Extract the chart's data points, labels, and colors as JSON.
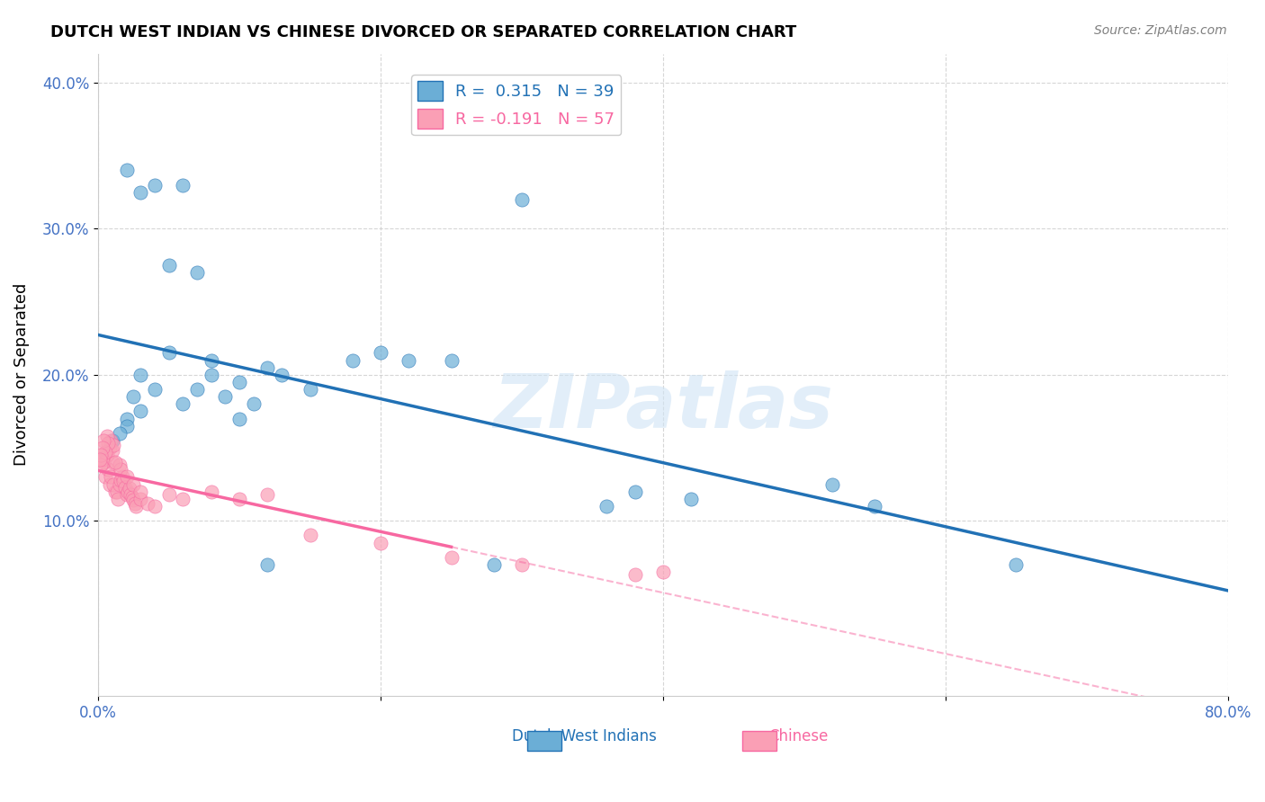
{
  "title": "DUTCH WEST INDIAN VS CHINESE DIVORCED OR SEPARATED CORRELATION CHART",
  "source": "Source: ZipAtlas.com",
  "xlabel": "",
  "ylabel": "Divorced or Separated",
  "xlim": [
    0.0,
    0.8
  ],
  "ylim": [
    -0.02,
    0.42
  ],
  "x_ticks": [
    0.0,
    0.2,
    0.4,
    0.6,
    0.8
  ],
  "x_tick_labels": [
    "0.0%",
    "",
    "",
    "",
    "80.0%"
  ],
  "y_ticks": [
    0.1,
    0.2,
    0.3,
    0.4
  ],
  "y_tick_labels": [
    "10.0%",
    "20.0%",
    "30.0%",
    "40.0%"
  ],
  "legend_label1": "Dutch West Indians",
  "legend_label2": "Chinese",
  "R1": "0.315",
  "N1": "39",
  "R2": "-0.191",
  "N2": "57",
  "blue_color": "#6baed6",
  "pink_color": "#fa9fb5",
  "blue_line_color": "#2171b5",
  "pink_line_color": "#f768a1",
  "watermark": "ZIPatlas",
  "dutch_x": [
    0.02,
    0.04,
    0.06,
    0.03,
    0.05,
    0.01,
    0.02,
    0.03,
    0.025,
    0.015,
    0.08,
    0.1,
    0.09,
    0.07,
    0.12,
    0.15,
    0.11,
    0.13,
    0.2,
    0.22,
    0.25,
    0.18,
    0.38,
    0.42,
    0.36,
    0.52,
    0.55,
    0.65,
    0.02,
    0.03,
    0.04,
    0.05,
    0.06,
    0.07,
    0.08,
    0.1,
    0.12,
    0.28,
    0.3
  ],
  "dutch_y": [
    0.17,
    0.19,
    0.18,
    0.2,
    0.215,
    0.155,
    0.165,
    0.175,
    0.185,
    0.16,
    0.2,
    0.195,
    0.185,
    0.19,
    0.205,
    0.19,
    0.18,
    0.2,
    0.215,
    0.21,
    0.21,
    0.21,
    0.12,
    0.115,
    0.11,
    0.125,
    0.11,
    0.07,
    0.34,
    0.325,
    0.33,
    0.275,
    0.33,
    0.27,
    0.21,
    0.17,
    0.07,
    0.07,
    0.32
  ],
  "chinese_x": [
    0.005,
    0.008,
    0.01,
    0.012,
    0.006,
    0.007,
    0.009,
    0.011,
    0.013,
    0.014,
    0.004,
    0.003,
    0.002,
    0.015,
    0.016,
    0.017,
    0.018,
    0.019,
    0.02,
    0.021,
    0.022,
    0.023,
    0.024,
    0.025,
    0.026,
    0.027,
    0.03,
    0.035,
    0.04,
    0.05,
    0.06,
    0.08,
    0.1,
    0.12,
    0.15,
    0.2,
    0.25,
    0.3,
    0.4,
    0.38,
    0.008,
    0.009,
    0.01,
    0.011,
    0.006,
    0.007,
    0.005,
    0.004,
    0.003,
    0.002,
    0.001,
    0.015,
    0.016,
    0.012,
    0.02,
    0.025,
    0.03
  ],
  "chinese_y": [
    0.13,
    0.125,
    0.14,
    0.12,
    0.145,
    0.135,
    0.13,
    0.125,
    0.12,
    0.115,
    0.14,
    0.142,
    0.138,
    0.125,
    0.128,
    0.13,
    0.127,
    0.123,
    0.118,
    0.12,
    0.122,
    0.118,
    0.116,
    0.114,
    0.112,
    0.11,
    0.115,
    0.112,
    0.11,
    0.118,
    0.115,
    0.12,
    0.115,
    0.118,
    0.09,
    0.085,
    0.075,
    0.07,
    0.065,
    0.063,
    0.15,
    0.155,
    0.148,
    0.152,
    0.158,
    0.153,
    0.147,
    0.155,
    0.15,
    0.145,
    0.142,
    0.138,
    0.135,
    0.14,
    0.13,
    0.125,
    0.12
  ]
}
